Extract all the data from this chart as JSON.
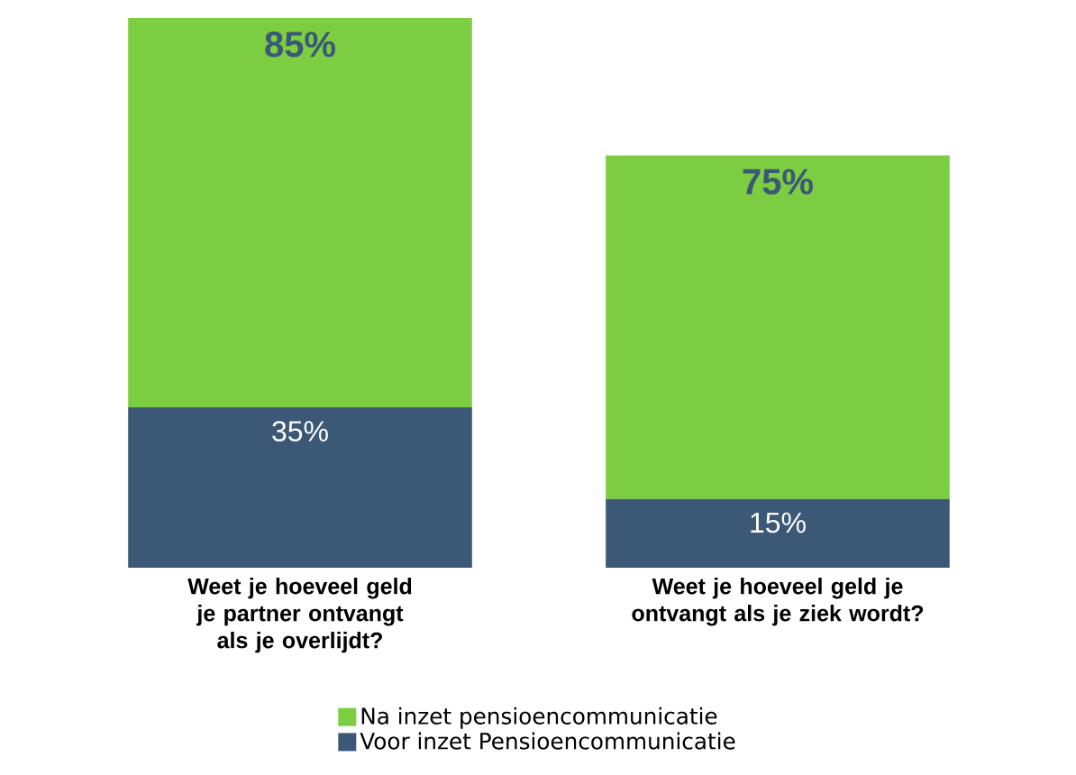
{
  "chart_data": {
    "type": "bar",
    "stacked": true,
    "categories": [
      "Weet je hoeveel geld je partner ontvangt als je overlijdt?",
      "Weet je hoeveel geld je ontvangt als je ziek wordt?"
    ],
    "series": [
      {
        "name": "Voor inzet Pensioencommunicatie",
        "color": "#3c5877",
        "values": [
          35,
          15
        ],
        "value_labels": [
          "35%",
          "15%"
        ]
      },
      {
        "name": "Na inzet pensioencommunicatie",
        "color": "#7ccd41",
        "values": [
          85,
          75
        ],
        "value_labels": [
          "85%",
          "75%"
        ]
      }
    ],
    "ylim": [
      0,
      120
    ],
    "legend": "bottom"
  }
}
